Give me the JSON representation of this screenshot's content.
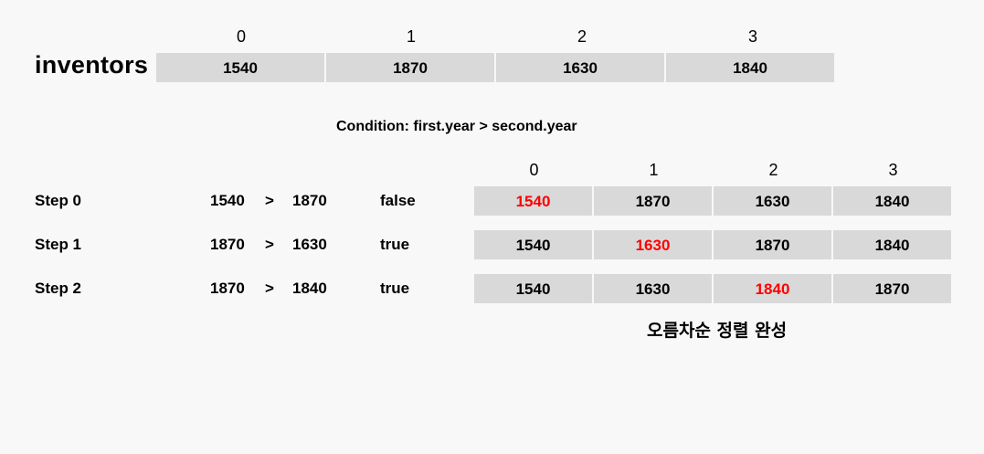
{
  "top": {
    "label": "inventors",
    "indices": [
      "0",
      "1",
      "2",
      "3"
    ],
    "values": [
      "1540",
      "1870",
      "1630",
      "1840"
    ]
  },
  "condition": "Condition: first.year > second.year",
  "step_indices": [
    "0",
    "1",
    "2",
    "3"
  ],
  "steps": [
    {
      "label": "Step 0",
      "a": "1540",
      "op": ">",
      "b": "1870",
      "result": "false",
      "array": [
        "1540",
        "1870",
        "1630",
        "1840"
      ],
      "highlight_index": 0
    },
    {
      "label": "Step 1",
      "a": "1870",
      "op": ">",
      "b": "1630",
      "result": "true",
      "array": [
        "1540",
        "1630",
        "1870",
        "1840"
      ],
      "highlight_index": 1
    },
    {
      "label": "Step 2",
      "a": "1870",
      "op": ">",
      "b": "1840",
      "result": "true",
      "array": [
        "1540",
        "1630",
        "1840",
        "1870"
      ],
      "highlight_index": 2
    }
  ],
  "final_note": "오름차순 정렬 완성",
  "colors": {
    "background": "#f8f8f8",
    "cell": "#d9d9d9",
    "highlight": "#ff0000"
  }
}
